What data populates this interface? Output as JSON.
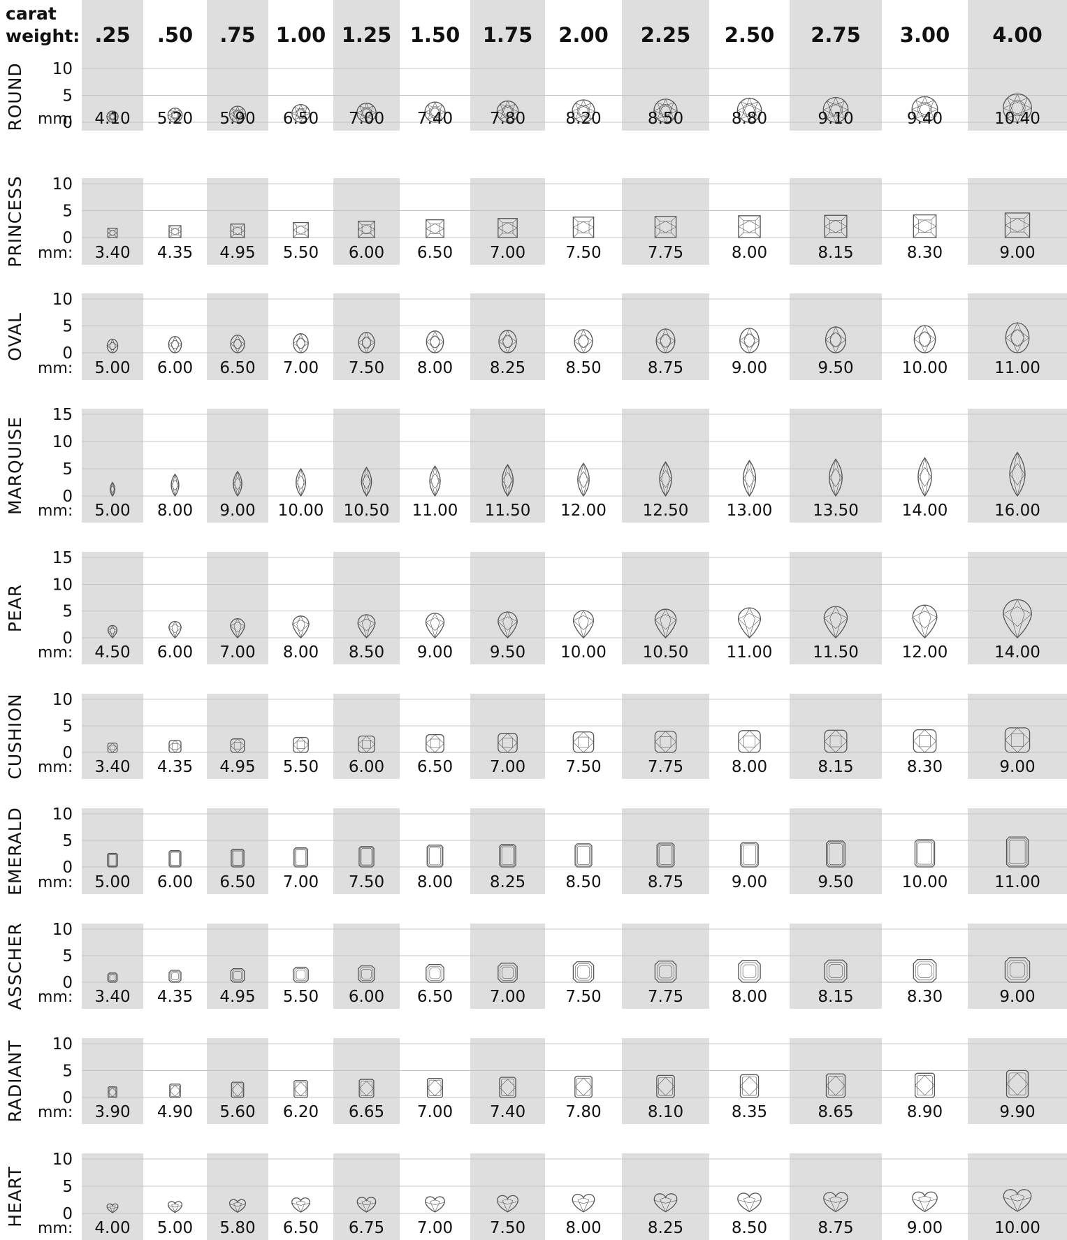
{
  "header": {
    "label_line1": "carat",
    "label_line2": "weight:"
  },
  "carat_weights": [
    ".25",
    ".50",
    ".75",
    "1.00",
    "1.25",
    "1.50",
    "1.75",
    "2.00",
    "2.25",
    "2.50",
    "2.75",
    "3.00",
    "4.00"
  ],
  "mm_label": "mm:",
  "chart_data": {
    "type": "table",
    "columns": [
      ".25",
      ".50",
      ".75",
      "1.00",
      "1.25",
      "1.50",
      "1.75",
      "2.00",
      "2.25",
      "2.50",
      "2.75",
      "3.00",
      "4.00"
    ],
    "rows": [
      {
        "shape": "ROUND",
        "ticks": [
          "10",
          "5",
          "0"
        ],
        "ymax": 10,
        "icon": "round-cut-icon",
        "mm": [
          "4.10",
          "5.20",
          "5.90",
          "6.50",
          "7.00",
          "7.40",
          "7.80",
          "8.20",
          "8.50",
          "8.80",
          "9.10",
          "9.40",
          "10.40"
        ]
      },
      {
        "shape": "PRINCESS",
        "ticks": [
          "10",
          "5",
          "0"
        ],
        "ymax": 10,
        "icon": "princess-cut-icon",
        "mm": [
          "3.40",
          "4.35",
          "4.95",
          "5.50",
          "6.00",
          "6.50",
          "7.00",
          "7.50",
          "7.75",
          "8.00",
          "8.15",
          "8.30",
          "9.00"
        ]
      },
      {
        "shape": "OVAL",
        "ticks": [
          "10",
          "5",
          "0"
        ],
        "ymax": 10,
        "icon": "oval-cut-icon",
        "mm": [
          "5.00",
          "6.00",
          "6.50",
          "7.00",
          "7.50",
          "8.00",
          "8.25",
          "8.50",
          "8.75",
          "9.00",
          "9.50",
          "10.00",
          "11.00"
        ]
      },
      {
        "shape": "MARQUISE",
        "ticks": [
          "15",
          "10",
          "5",
          "0"
        ],
        "ymax": 15,
        "icon": "marquise-cut-icon",
        "mm": [
          "5.00",
          "8.00",
          "9.00",
          "10.00",
          "10.50",
          "11.00",
          "11.50",
          "12.00",
          "12.50",
          "13.00",
          "13.50",
          "14.00",
          "16.00"
        ]
      },
      {
        "shape": "PEAR",
        "ticks": [
          "15",
          "10",
          "5",
          "0"
        ],
        "ymax": 15,
        "icon": "pear-cut-icon",
        "mm": [
          "4.50",
          "6.00",
          "7.00",
          "8.00",
          "8.50",
          "9.00",
          "9.50",
          "10.00",
          "10.50",
          "11.00",
          "11.50",
          "12.00",
          "14.00"
        ]
      },
      {
        "shape": "CUSHION",
        "ticks": [
          "10",
          "5",
          "0"
        ],
        "ymax": 10,
        "icon": "cushion-cut-icon",
        "mm": [
          "3.40",
          "4.35",
          "4.95",
          "5.50",
          "6.00",
          "6.50",
          "7.00",
          "7.50",
          "7.75",
          "8.00",
          "8.15",
          "8.30",
          "9.00"
        ]
      },
      {
        "shape": "EMERALD",
        "ticks": [
          "10",
          "5",
          "0"
        ],
        "ymax": 10,
        "icon": "emerald-cut-icon",
        "mm": [
          "5.00",
          "6.00",
          "6.50",
          "7.00",
          "7.50",
          "8.00",
          "8.25",
          "8.50",
          "8.75",
          "9.00",
          "9.50",
          "10.00",
          "11.00"
        ]
      },
      {
        "shape": "ASSCHER",
        "ticks": [
          "10",
          "5",
          "0"
        ],
        "ymax": 10,
        "icon": "asscher-cut-icon",
        "mm": [
          "3.40",
          "4.35",
          "4.95",
          "5.50",
          "6.00",
          "6.50",
          "7.00",
          "7.50",
          "7.75",
          "8.00",
          "8.15",
          "8.30",
          "9.00"
        ]
      },
      {
        "shape": "RADIANT",
        "ticks": [
          "10",
          "5",
          "0"
        ],
        "ymax": 10,
        "icon": "radiant-cut-icon",
        "mm": [
          "3.90",
          "4.90",
          "5.60",
          "6.20",
          "6.65",
          "7.00",
          "7.40",
          "7.80",
          "8.10",
          "8.35",
          "8.65",
          "8.90",
          "9.90"
        ]
      },
      {
        "shape": "HEART",
        "ticks": [
          "10",
          "5",
          "0"
        ],
        "ymax": 10,
        "icon": "heart-cut-icon",
        "mm": [
          "4.00",
          "5.00",
          "5.80",
          "6.50",
          "6.75",
          "7.00",
          "7.50",
          "8.00",
          "8.25",
          "8.50",
          "8.75",
          "9.00",
          "10.00"
        ]
      }
    ]
  },
  "colors": {
    "shade": "#dedede",
    "gridline": "#c4c4c4",
    "stone_outline": "#555555",
    "text": "#111111"
  }
}
